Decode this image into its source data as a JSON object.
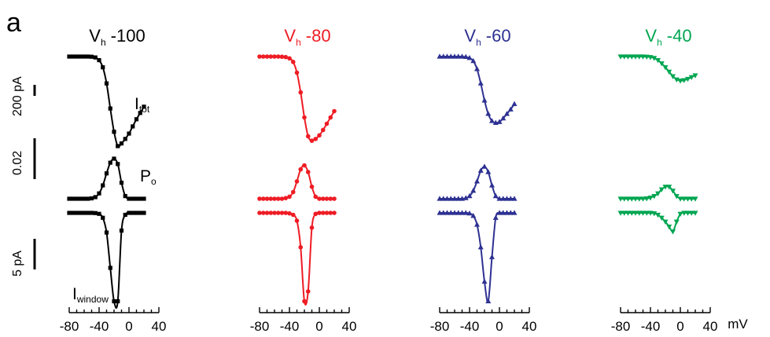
{
  "panel_label": "a",
  "x_unit": "mV",
  "scale_bars": {
    "current_label": "200 pA",
    "po_label": "0.02",
    "window_label": "5 pA"
  },
  "trace_labels": {
    "itot_main": "I",
    "itot_sub": "tot",
    "po_main": "P",
    "po_sub": "o",
    "iwin_main": "I",
    "iwin_sub": "window"
  },
  "colors": {
    "vh_minus_100": "#000000",
    "vh_minus_80": "#ee1c24",
    "vh_minus_60": "#2e3192",
    "vh_minus_40": "#00a651"
  },
  "chart_data": [
    {
      "type": "line",
      "title_main": "V",
      "title_sub": "h",
      "title_value": "-100",
      "color": "#000000",
      "marker": "square",
      "x_axis": {
        "ticks": [
          -80,
          -40,
          0,
          40
        ],
        "xlim": [
          -80,
          40
        ]
      },
      "x": [
        -80,
        -75,
        -70,
        -65,
        -60,
        -55,
        -50,
        -45,
        -40,
        -35,
        -30,
        -25,
        -20,
        -15,
        -10,
        -5,
        0,
        5,
        10,
        15,
        20
      ],
      "series": [
        {
          "key": "I_tot",
          "unit": "pA",
          "values": [
            0,
            0,
            0,
            0,
            0,
            0,
            -1,
            -5,
            -20,
            -60,
            -150,
            -290,
            -420,
            -500,
            -485,
            -460,
            -430,
            -390,
            -350,
            -315,
            -280
          ]
        },
        {
          "key": "P_o",
          "unit": "fraction",
          "values": [
            0,
            0,
            0,
            0,
            0,
            0,
            0.0003,
            0.0012,
            0.004,
            0.01,
            0.019,
            0.027,
            0.03,
            0.026,
            0.012,
            0.002,
            0,
            0,
            0,
            0,
            0
          ]
        },
        {
          "key": "I_window",
          "unit": "pA",
          "values": [
            0,
            0,
            0,
            0,
            0,
            0,
            0,
            -0.02,
            -0.1,
            -0.5,
            -2.0,
            -5.6,
            -9.0,
            -9.0,
            -1.8,
            -0.2,
            0,
            0,
            0,
            0,
            0
          ]
        }
      ]
    },
    {
      "type": "line",
      "title_main": "V",
      "title_sub": "h",
      "title_value": "-80",
      "color": "#ee1c24",
      "marker": "circle",
      "x_axis": {
        "ticks": [
          -80,
          -40,
          0,
          40
        ],
        "xlim": [
          -80,
          40
        ]
      },
      "x": [
        -80,
        -75,
        -70,
        -65,
        -60,
        -55,
        -50,
        -45,
        -40,
        -35,
        -30,
        -25,
        -20,
        -15,
        -10,
        -5,
        0,
        5,
        10,
        15,
        20
      ],
      "series": [
        {
          "key": "I_tot",
          "unit": "pA",
          "values": [
            0,
            0,
            0,
            0,
            0,
            0,
            -1,
            -3,
            -10,
            -30,
            -90,
            -200,
            -340,
            -445,
            -470,
            -460,
            -440,
            -410,
            -375,
            -340,
            -305
          ]
        },
        {
          "key": "P_o",
          "unit": "fraction",
          "values": [
            0,
            0,
            0,
            0,
            0,
            0,
            0,
            0.0005,
            0.0015,
            0.005,
            0.013,
            0.022,
            0.025,
            0.02,
            0.009,
            0.0015,
            0,
            0,
            0,
            0,
            0
          ]
        },
        {
          "key": "I_window",
          "unit": "pA",
          "values": [
            0,
            0,
            0,
            0,
            0,
            0,
            0,
            0,
            -0.05,
            -0.2,
            -0.8,
            -3.5,
            -9.0,
            -8.0,
            -1.5,
            -0.1,
            0,
            0,
            0,
            0,
            0
          ]
        }
      ]
    },
    {
      "type": "line",
      "title_main": "V",
      "title_sub": "h",
      "title_value": "-60",
      "color": "#2e3192",
      "marker": "triangle-up",
      "x_axis": {
        "ticks": [
          -80,
          -40,
          0,
          40
        ],
        "xlim": [
          -80,
          40
        ]
      },
      "x": [
        -80,
        -75,
        -70,
        -65,
        -60,
        -55,
        -50,
        -45,
        -40,
        -35,
        -30,
        -25,
        -20,
        -15,
        -10,
        -5,
        0,
        5,
        10,
        15,
        20
      ],
      "series": [
        {
          "key": "I_tot",
          "unit": "pA",
          "values": [
            0,
            0,
            0,
            0,
            0,
            0,
            0,
            -2,
            -8,
            -25,
            -70,
            -150,
            -245,
            -320,
            -360,
            -370,
            -365,
            -345,
            -320,
            -295,
            -265
          ]
        },
        {
          "key": "P_o",
          "unit": "fraction",
          "values": [
            0,
            0,
            0,
            0,
            0,
            0,
            0,
            0.0005,
            0.002,
            0.006,
            0.013,
            0.021,
            0.024,
            0.02,
            0.01,
            0.002,
            0,
            0,
            0,
            0,
            0
          ]
        },
        {
          "key": "I_window",
          "unit": "pA",
          "values": [
            0,
            0,
            0,
            0,
            0,
            0,
            0,
            0,
            -0.05,
            -0.3,
            -1.2,
            -3.5,
            -7.0,
            -9.0,
            -4.5,
            -0.5,
            0,
            0,
            0,
            0,
            0
          ]
        }
      ]
    },
    {
      "type": "line",
      "title_main": "V",
      "title_sub": "h",
      "title_value": "-40",
      "color": "#00a651",
      "marker": "triangle-down",
      "x_axis": {
        "ticks": [
          -80,
          -40,
          0,
          40
        ],
        "xlim": [
          -80,
          40
        ],
        "unit_label": "mV"
      },
      "x": [
        -80,
        -75,
        -70,
        -65,
        -60,
        -55,
        -50,
        -45,
        -40,
        -35,
        -30,
        -25,
        -20,
        -15,
        -10,
        -5,
        0,
        5,
        10,
        15,
        20
      ],
      "series": [
        {
          "key": "I_tot",
          "unit": "pA",
          "values": [
            0,
            0,
            0,
            0,
            0,
            0,
            0,
            -1,
            -3,
            -8,
            -20,
            -38,
            -60,
            -85,
            -110,
            -128,
            -135,
            -132,
            -125,
            -115,
            -105
          ]
        },
        {
          "key": "P_o",
          "unit": "fraction",
          "values": [
            0,
            0,
            0,
            0,
            0,
            0,
            0,
            0.0002,
            0.0008,
            0.002,
            0.004,
            0.007,
            0.009,
            0.009,
            0.006,
            0.002,
            0,
            0,
            0,
            0,
            0
          ]
        },
        {
          "key": "I_window",
          "unit": "pA",
          "values": [
            0,
            0,
            0,
            0,
            0,
            0,
            0,
            0,
            0,
            -0.05,
            -0.2,
            -0.5,
            -0.9,
            -1.4,
            -1.9,
            -0.9,
            -0.1,
            0,
            0,
            0,
            0
          ]
        }
      ]
    }
  ]
}
